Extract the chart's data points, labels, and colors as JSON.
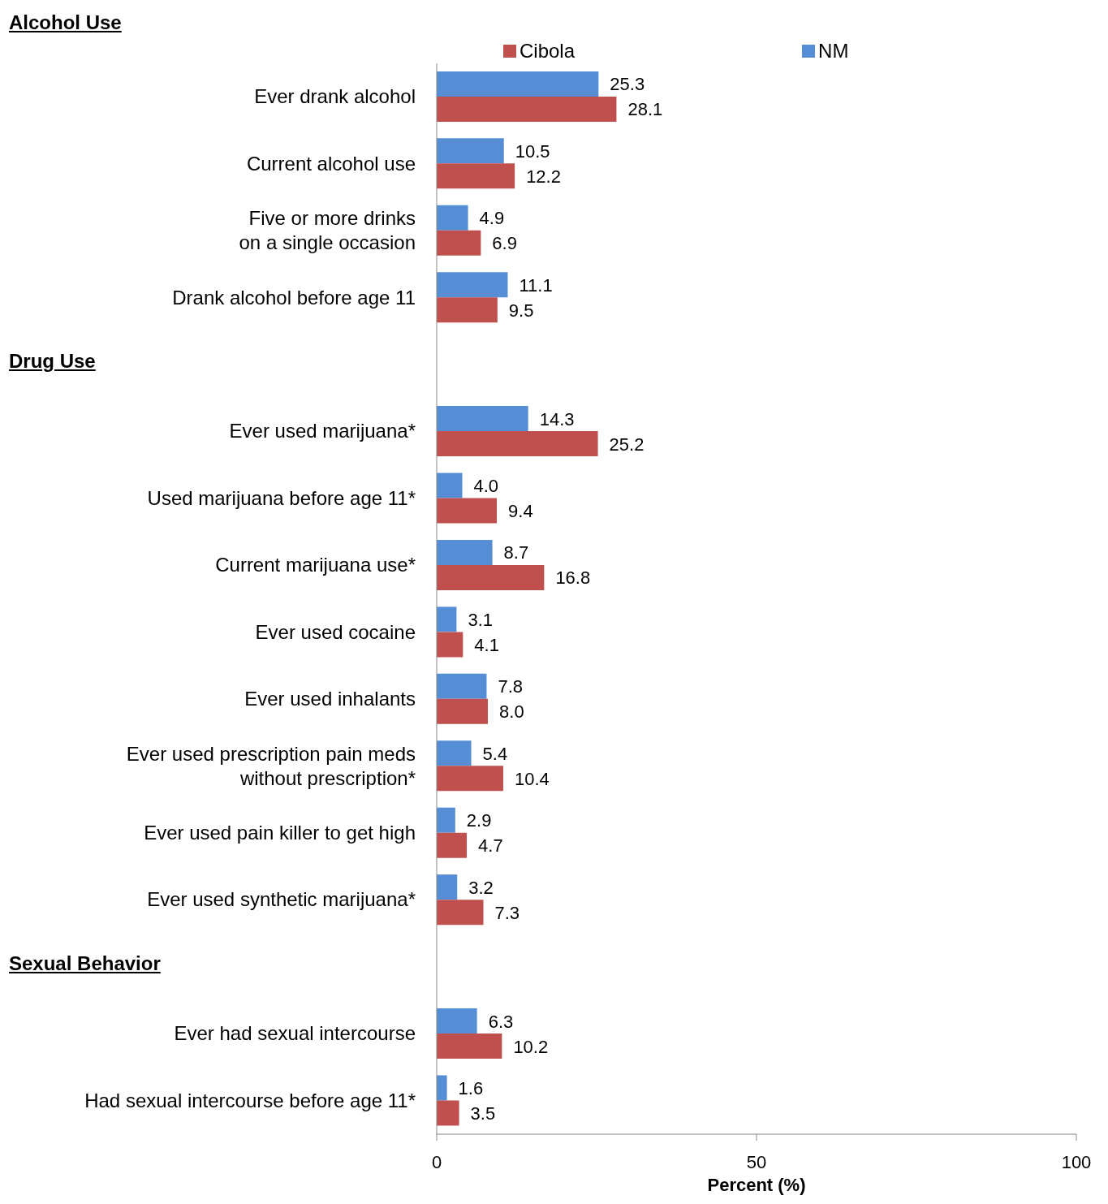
{
  "chart_data": {
    "type": "bar",
    "orientation": "horizontal",
    "xlabel": "Percent (%)",
    "categories": [
      "Ever drank alcohol",
      "Current alcohol use",
      "Five or more drinks\non a single occasion",
      "Drank alcohol before age 11",
      null,
      "Ever used marijuana*",
      "Used marijuana before age 11*",
      "Current marijuana use*",
      "Ever used cocaine",
      "Ever used inhalants",
      "Ever used prescription pain meds\nwithout prescription*",
      "Ever used pain killer to get high",
      "Ever used synthetic marijuana*",
      null,
      "Ever had sexual intercourse",
      "Had sexual intercourse before age 11*"
    ],
    "series": [
      {
        "name": "NM",
        "color": "#558ed5",
        "values": [
          25.3,
          10.5,
          4.9,
          11.1,
          null,
          14.3,
          4.0,
          8.7,
          3.1,
          7.8,
          5.4,
          2.9,
          3.2,
          null,
          6.3,
          1.6
        ],
        "value_labels": [
          "25.3",
          "10.5",
          "4.9",
          "11.1",
          null,
          "14.3",
          "4.0",
          "8.7",
          "3.1",
          "7.8",
          "5.4",
          "2.9",
          "3.2",
          null,
          "6.3",
          "1.6"
        ]
      },
      {
        "name": "Cibola",
        "color": "#c0504d",
        "values": [
          28.1,
          12.2,
          6.9,
          9.5,
          null,
          25.2,
          9.4,
          16.8,
          4.1,
          8.0,
          10.4,
          4.7,
          7.3,
          null,
          10.2,
          3.5
        ],
        "value_labels": [
          "28.1",
          "12.2",
          "6.9",
          "9.5",
          null,
          "25.2",
          "9.4",
          "16.8",
          "4.1",
          "8.0",
          "10.4",
          "4.7",
          "7.3",
          null,
          "10.2",
          "3.5"
        ]
      }
    ],
    "xlim": [
      0,
      100
    ],
    "xticks": [
      0,
      50,
      100
    ],
    "legend": "top",
    "annotations": [
      "Alcohol Use",
      "Drug Use",
      "Sexual Behavior"
    ]
  }
}
